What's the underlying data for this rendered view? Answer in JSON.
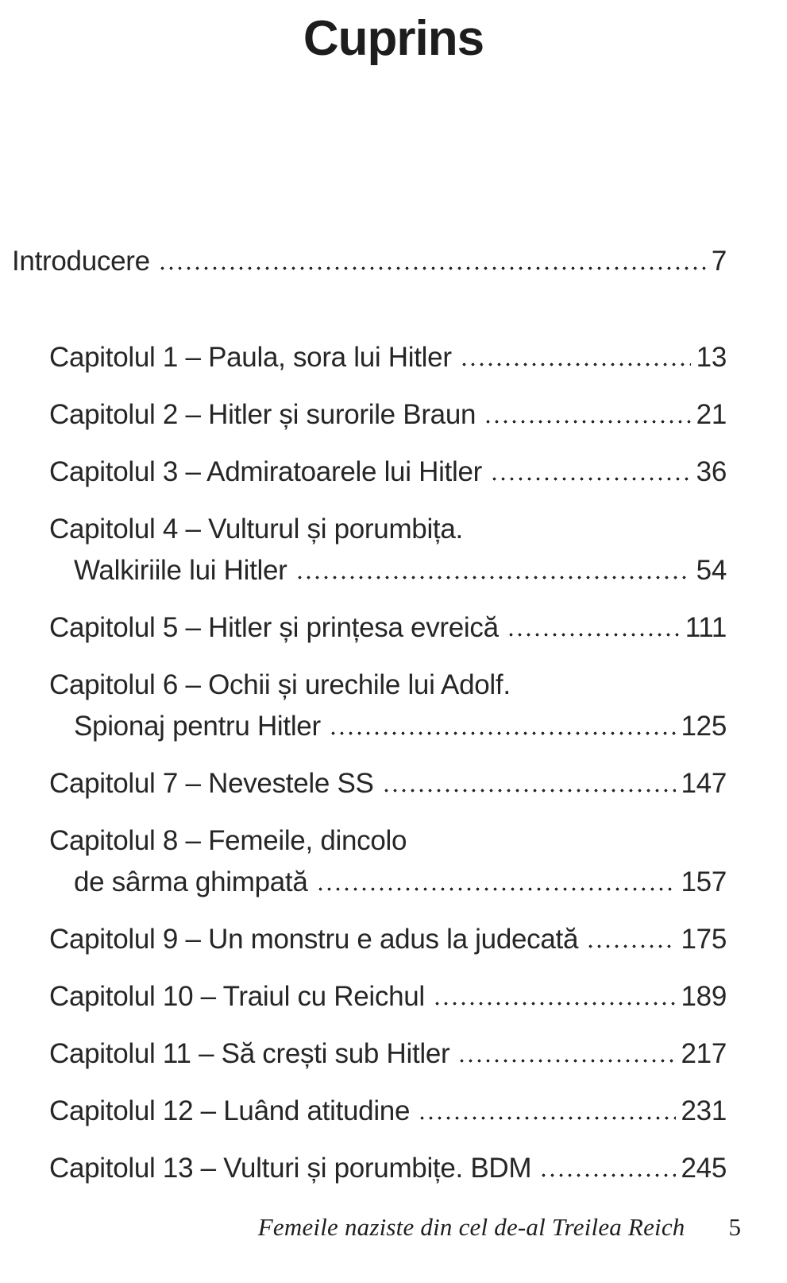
{
  "page": {
    "title": "Cuprins",
    "entries": [
      {
        "lines": [
          "Introducere"
        ],
        "page": "7"
      },
      {
        "lines": [
          "Capitolul 1 – Paula, sora lui Hitler"
        ],
        "page": "13"
      },
      {
        "lines": [
          "Capitolul 2 – Hitler și surorile Braun"
        ],
        "page": "21"
      },
      {
        "lines": [
          "Capitolul 3 – Admiratoarele lui Hitler"
        ],
        "page": "36"
      },
      {
        "lines": [
          "Capitolul 4 – Vulturul și porumbița.",
          "Walkiriile lui Hitler"
        ],
        "page": "54"
      },
      {
        "lines": [
          "Capitolul 5 – Hitler și prințesa evreică"
        ],
        "page": "111"
      },
      {
        "lines": [
          "Capitolul 6 – Ochii și urechile lui Adolf.",
          "Spionaj pentru Hitler"
        ],
        "page": "125"
      },
      {
        "lines": [
          "Capitolul 7 – Nevestele SS"
        ],
        "page": "147"
      },
      {
        "lines": [
          "Capitolul 8 – Femeile, dincolo",
          "de sârma ghimpată"
        ],
        "page": "157"
      },
      {
        "lines": [
          "Capitolul 9 – Un monstru e adus la judecată"
        ],
        "page": "175"
      },
      {
        "lines": [
          "Capitolul 10 – Traiul cu Reichul"
        ],
        "page": "189"
      },
      {
        "lines": [
          "Capitolul 11 – Să crești sub Hitler"
        ],
        "page": "217"
      },
      {
        "lines": [
          "Capitolul 12 – Luând atitudine"
        ],
        "page": "231"
      },
      {
        "lines": [
          "Capitolul 13 – Vulturi și porumbițe. BDM"
        ],
        "page": "245"
      }
    ],
    "footer": {
      "book_title": "Femeile naziste din cel de-al Treilea Reich",
      "page_number": "5"
    },
    "colors": {
      "text": "#262626",
      "background": "#ffffff"
    }
  }
}
